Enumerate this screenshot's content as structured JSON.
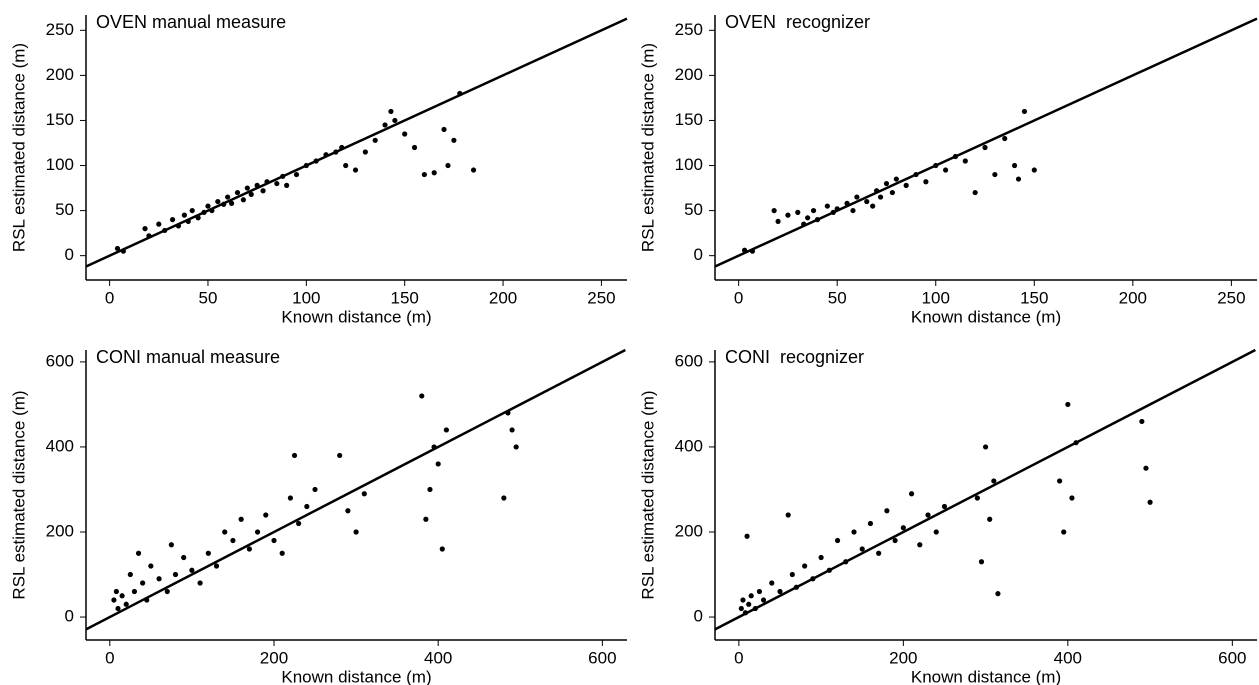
{
  "chart_data": [
    {
      "type": "scatter",
      "title": "OVEN manual measure",
      "x_label": "Known distance (m)",
      "y_label": "RSL estimated distance (m)",
      "xlim": [
        -12,
        263
      ],
      "ylim": [
        -27,
        267
      ],
      "xticks": [
        0,
        50,
        100,
        150,
        200,
        250
      ],
      "yticks": [
        0,
        50,
        100,
        150,
        200,
        250
      ],
      "identity_line": true,
      "color": "#000000",
      "x": [
        4,
        7,
        18,
        20,
        25,
        28,
        32,
        35,
        38,
        40,
        42,
        45,
        48,
        50,
        52,
        55,
        58,
        60,
        62,
        65,
        68,
        70,
        72,
        75,
        78,
        80,
        85,
        88,
        90,
        95,
        100,
        105,
        110,
        115,
        118,
        120,
        125,
        130,
        135,
        140,
        143,
        145,
        150,
        155,
        160,
        165,
        170,
        172,
        175,
        178,
        185
      ],
      "values": [
        8,
        5,
        30,
        22,
        35,
        28,
        40,
        33,
        45,
        38,
        50,
        42,
        48,
        55,
        50,
        60,
        57,
        65,
        58,
        70,
        62,
        75,
        68,
        78,
        72,
        82,
        80,
        88,
        78,
        90,
        100,
        105,
        112,
        115,
        120,
        100,
        95,
        115,
        128,
        145,
        160,
        150,
        135,
        120,
        90,
        92,
        140,
        100,
        128,
        180,
        95
      ]
    },
    {
      "type": "scatter",
      "title": "OVEN  recognizer",
      "x_label": "Known distance (m)",
      "y_label": "RSL estimated distance (m)",
      "xlim": [
        -12,
        263
      ],
      "ylim": [
        -27,
        267
      ],
      "xticks": [
        0,
        50,
        100,
        150,
        200,
        250
      ],
      "yticks": [
        0,
        50,
        100,
        150,
        200,
        250
      ],
      "identity_line": true,
      "color": "#000000",
      "x": [
        3,
        7,
        18,
        20,
        25,
        30,
        33,
        35,
        38,
        40,
        45,
        48,
        50,
        55,
        58,
        60,
        65,
        68,
        70,
        72,
        75,
        78,
        80,
        85,
        90,
        95,
        100,
        105,
        110,
        115,
        120,
        125,
        130,
        135,
        140,
        142,
        145,
        150
      ],
      "values": [
        6,
        5,
        50,
        38,
        45,
        48,
        35,
        42,
        50,
        40,
        55,
        48,
        52,
        58,
        50,
        65,
        60,
        55,
        72,
        65,
        80,
        70,
        85,
        78,
        90,
        82,
        100,
        95,
        110,
        105,
        70,
        120,
        90,
        130,
        100,
        85,
        160,
        95
      ]
    },
    {
      "type": "scatter",
      "title": "CONI manual measure",
      "x_label": "Known distance (m)",
      "y_label": "RSL estimated distance (m)",
      "xlim": [
        -29,
        630
      ],
      "ylim": [
        -54,
        628
      ],
      "xticks": [
        0,
        200,
        400,
        600
      ],
      "yticks": [
        0,
        200,
        400,
        600
      ],
      "identity_line": true,
      "color": "#000000",
      "x": [
        5,
        8,
        10,
        15,
        20,
        25,
        30,
        35,
        40,
        45,
        50,
        60,
        70,
        75,
        80,
        90,
        100,
        110,
        120,
        130,
        140,
        150,
        160,
        170,
        180,
        190,
        200,
        210,
        220,
        225,
        230,
        240,
        250,
        280,
        290,
        300,
        310,
        380,
        385,
        390,
        395,
        400,
        405,
        410,
        480,
        485,
        490,
        495
      ],
      "values": [
        40,
        60,
        20,
        50,
        30,
        100,
        60,
        150,
        80,
        40,
        120,
        90,
        60,
        170,
        100,
        140,
        110,
        80,
        150,
        120,
        200,
        180,
        230,
        160,
        200,
        240,
        180,
        150,
        280,
        380,
        220,
        260,
        300,
        380,
        250,
        200,
        290,
        520,
        230,
        300,
        400,
        360,
        160,
        440,
        280,
        480,
        440,
        400
      ]
    },
    {
      "type": "scatter",
      "title": "CONI  recognizer",
      "x_label": "Known distance (m)",
      "y_label": "RSL estimated distance (m)",
      "xlim": [
        -29,
        630
      ],
      "ylim": [
        -54,
        628
      ],
      "xticks": [
        0,
        200,
        400,
        600
      ],
      "yticks": [
        0,
        200,
        400,
        600
      ],
      "identity_line": true,
      "color": "#000000",
      "x": [
        3,
        5,
        8,
        10,
        12,
        15,
        20,
        25,
        30,
        40,
        50,
        60,
        65,
        70,
        80,
        90,
        100,
        110,
        120,
        130,
        140,
        150,
        160,
        170,
        180,
        190,
        200,
        210,
        220,
        230,
        240,
        250,
        290,
        295,
        300,
        305,
        310,
        315,
        390,
        395,
        400,
        405,
        410,
        490,
        495,
        500
      ],
      "values": [
        20,
        40,
        10,
        190,
        30,
        50,
        20,
        60,
        40,
        80,
        60,
        240,
        100,
        70,
        120,
        90,
        140,
        110,
        180,
        130,
        200,
        160,
        220,
        150,
        250,
        180,
        210,
        290,
        170,
        240,
        200,
        260,
        280,
        130,
        400,
        230,
        320,
        55,
        320,
        200,
        500,
        280,
        410,
        460,
        350,
        270
      ]
    }
  ]
}
